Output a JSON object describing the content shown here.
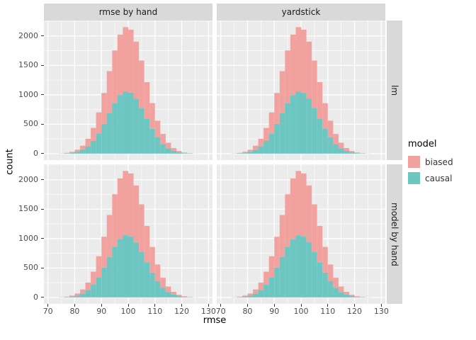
{
  "chart_data": {
    "type": "bar",
    "subtype": "stacked-histogram-faceted",
    "title": "",
    "xlabel": "rmse",
    "ylabel": "count",
    "x_ticks": [
      70,
      80,
      90,
      100,
      110,
      120,
      130
    ],
    "y_ticks": [
      0,
      500,
      1000,
      1500,
      2000
    ],
    "x_minor": [
      75,
      85,
      95,
      105,
      115,
      125
    ],
    "y_minor": [
      250,
      750,
      1250,
      1750,
      2250
    ],
    "x_domain": [
      68.5,
      131.5
    ],
    "y_domain": [
      -110,
      2262
    ],
    "bin_width": 2,
    "bin_centers": [
      75,
      77,
      79,
      81,
      83,
      85,
      87,
      89,
      91,
      93,
      95,
      97,
      99,
      101,
      103,
      105,
      107,
      109,
      111,
      113,
      115,
      117,
      119,
      121,
      123,
      125
    ],
    "series": [
      {
        "name": "biased",
        "color": "#F2A29E",
        "values": [
          2,
          7,
          16,
          34,
          69,
          128,
          222,
          356,
          524,
          712,
          891,
          1028,
          1093,
          1071,
          967,
          804,
          617,
          436,
          284,
          170,
          94,
          48,
          23,
          10,
          4,
          1
        ]
      },
      {
        "name": "causal",
        "color": "#6EC6C3",
        "values": [
          2,
          6,
          15,
          32,
          66,
          124,
          215,
          344,
          507,
          689,
          862,
          995,
          1057,
          1036,
          936,
          778,
          597,
          422,
          275,
          165,
          91,
          47,
          22,
          9,
          4,
          1
        ]
      }
    ],
    "stacking": "biased stacked on top of causal, identical data in all four facets",
    "facets": {
      "cols": [
        "rmse by hand",
        "yardstick"
      ],
      "rows": [
        "lm",
        "model by hand"
      ]
    },
    "legend": {
      "title": "model",
      "position": "right",
      "entries": [
        {
          "label": "biased",
          "color": "#F2A29E"
        },
        {
          "label": "causal",
          "color": "#6EC6C3"
        }
      ]
    },
    "panel_background": "#EBEBEB",
    "strip_background": "#D9D9D9",
    "grid_color": "#FFFFFF",
    "grid": "on"
  }
}
